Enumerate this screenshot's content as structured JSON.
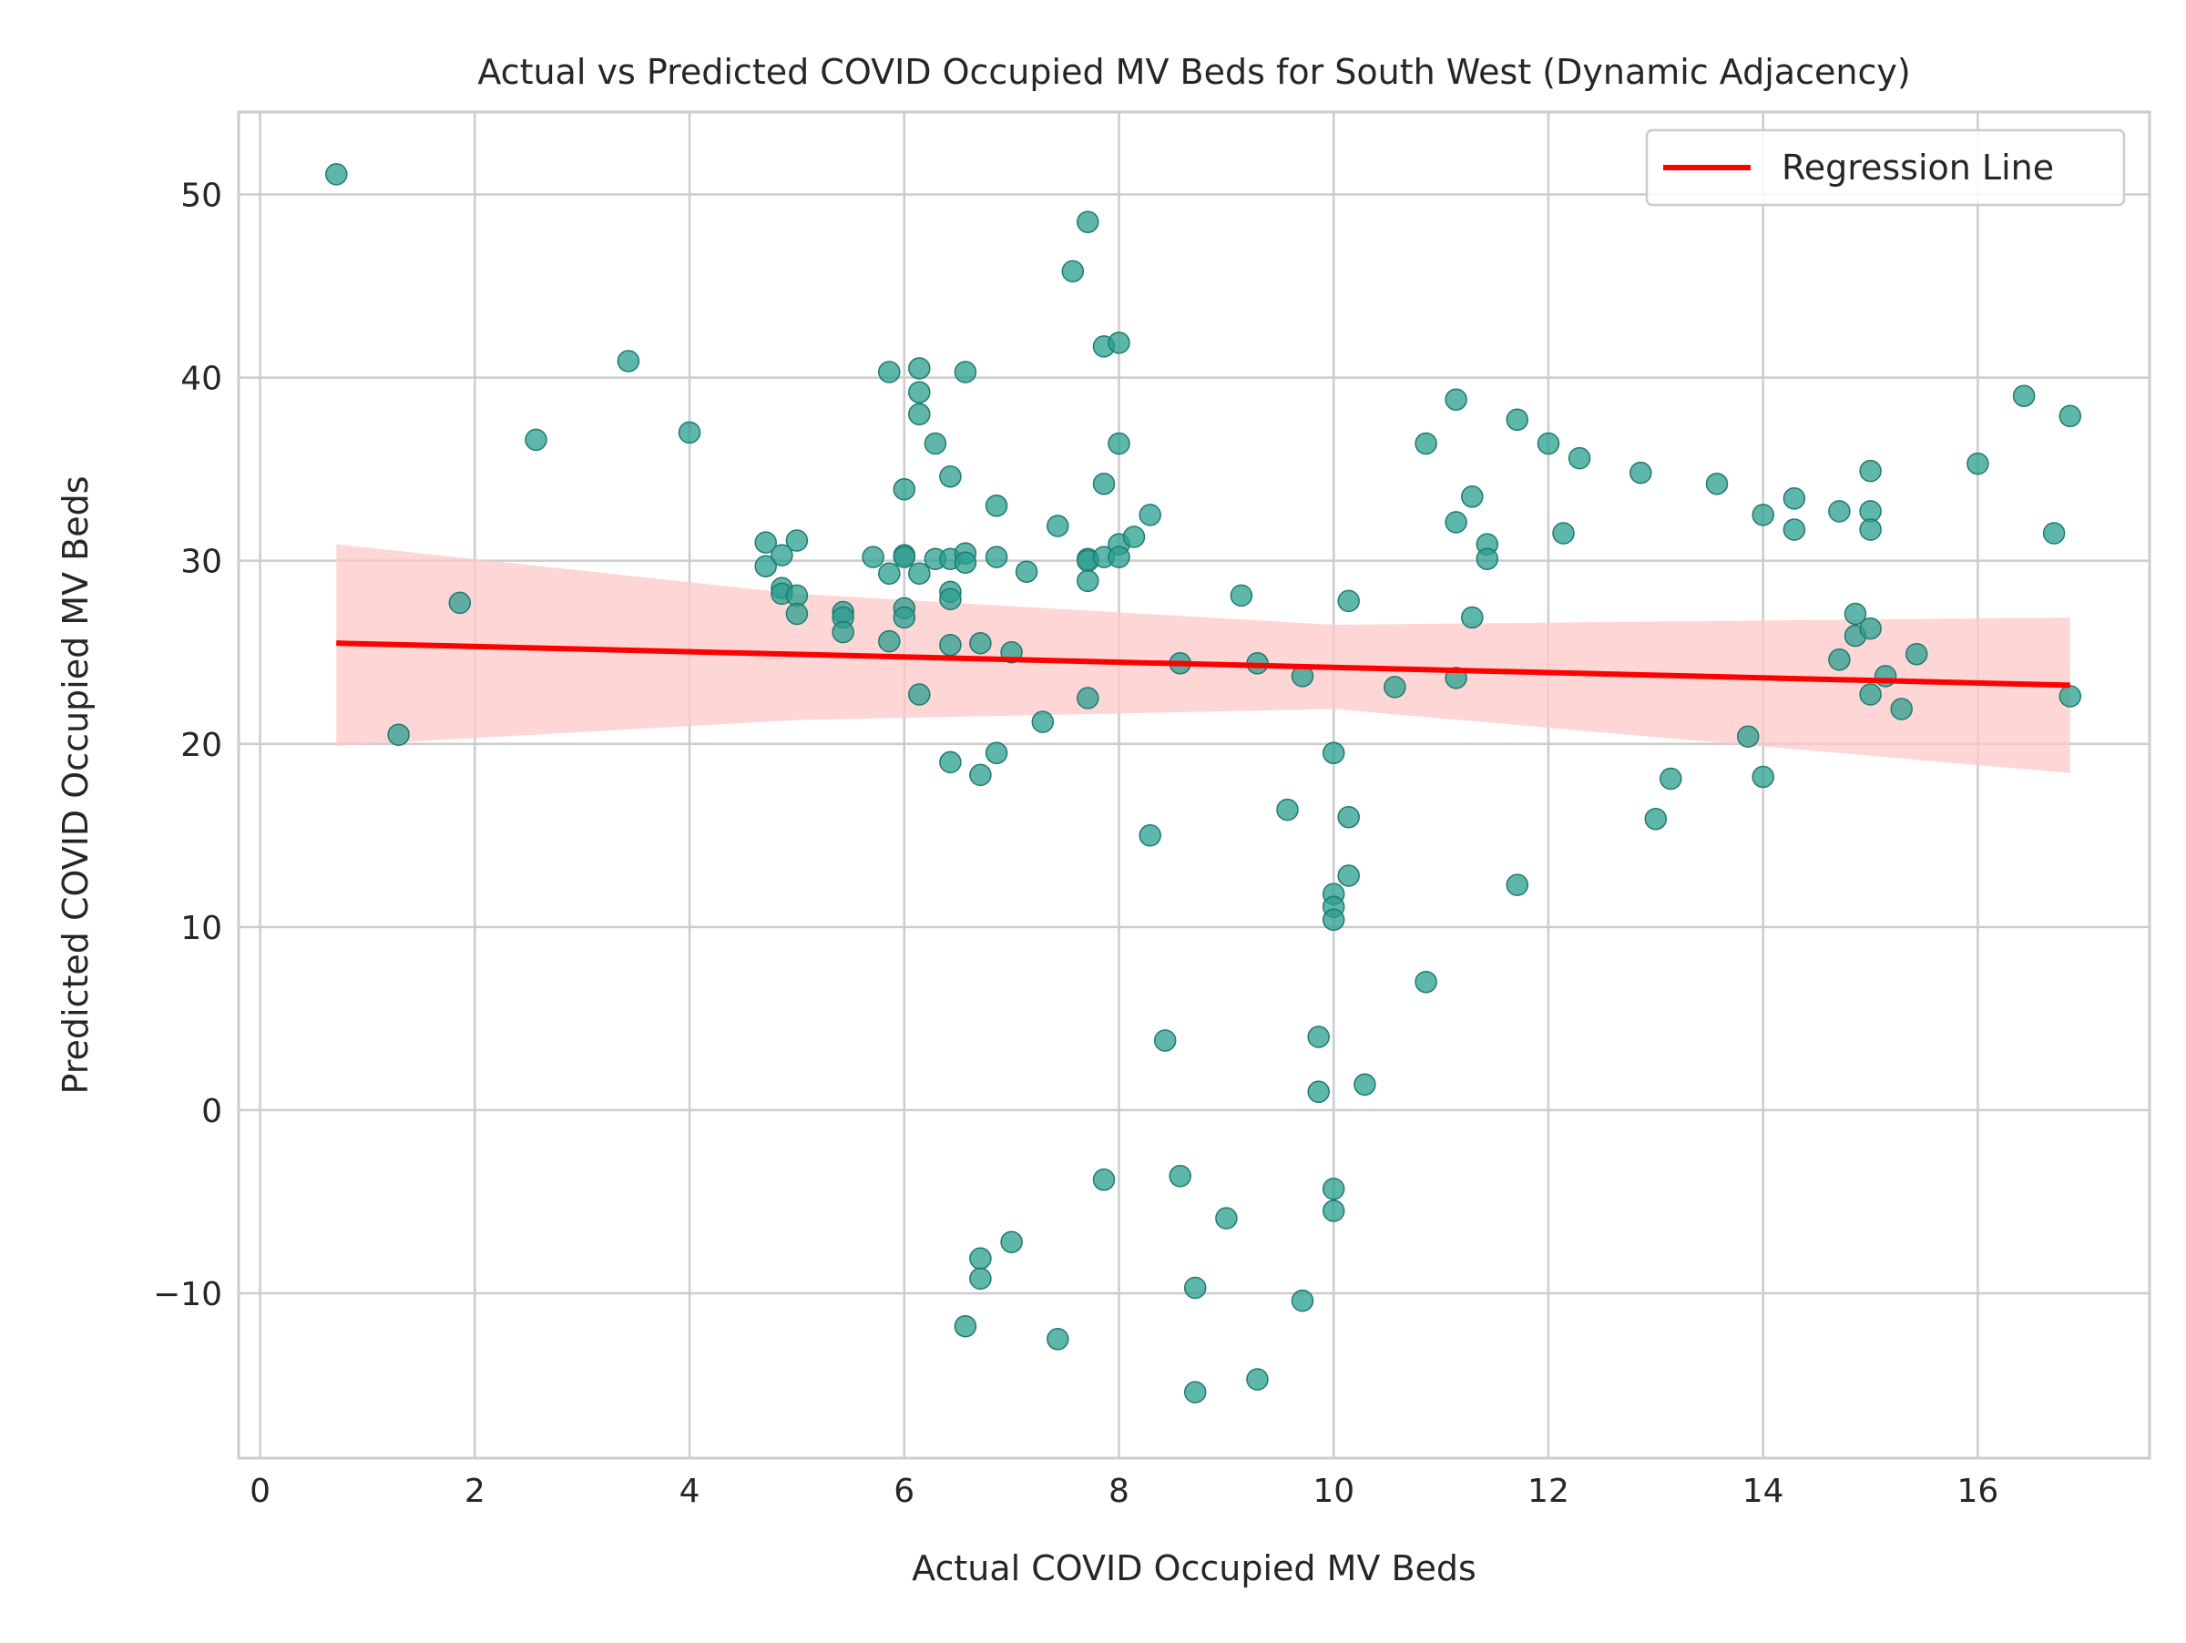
{
  "chart_data": {
    "type": "scatter",
    "title": "Actual vs Predicted COVID Occupied MV Beds for South West (Dynamic Adjacency)",
    "xlabel": "Actual COVID Occupied MV Beds",
    "ylabel": "Predicted COVID Occupied MV Beds",
    "xlim": [
      -0.2,
      17.6
    ],
    "ylim": [
      -19,
      54.5
    ],
    "xticks": [
      0,
      2,
      4,
      6,
      8,
      10,
      12,
      14,
      16
    ],
    "yticks": [
      -10,
      0,
      10,
      20,
      30,
      40,
      50
    ],
    "ytick_labels": [
      "−10",
      "0",
      "10",
      "20",
      "30",
      "40",
      "50"
    ],
    "grid": true,
    "legend": {
      "position": "top-right",
      "entries": [
        "Regression Line"
      ]
    },
    "colors": {
      "points": "#2a9d8f",
      "point_edge": "#1f7a6f",
      "regression": "#ff0000",
      "band": "#ffc8c8"
    },
    "regression": {
      "x": [
        0.71,
        16.86
      ],
      "y": [
        25.5,
        23.2
      ]
    },
    "confidence_band": {
      "x": [
        0.71,
        5.0,
        10.0,
        16.86
      ],
      "upper": [
        30.9,
        28.2,
        26.5,
        26.9
      ],
      "lower": [
        19.9,
        21.3,
        21.9,
        18.4
      ]
    },
    "points": [
      {
        "x": 0.71,
        "y": 51.1
      },
      {
        "x": 1.29,
        "y": 20.5
      },
      {
        "x": 1.86,
        "y": 27.7
      },
      {
        "x": 2.57,
        "y": 36.6
      },
      {
        "x": 3.43,
        "y": 40.9
      },
      {
        "x": 4.0,
        "y": 37.0
      },
      {
        "x": 4.71,
        "y": 31.0
      },
      {
        "x": 4.71,
        "y": 29.7
      },
      {
        "x": 4.86,
        "y": 30.3
      },
      {
        "x": 4.86,
        "y": 28.5
      },
      {
        "x": 4.86,
        "y": 28.2
      },
      {
        "x": 5.0,
        "y": 31.1
      },
      {
        "x": 5.0,
        "y": 28.1
      },
      {
        "x": 5.0,
        "y": 27.1
      },
      {
        "x": 5.43,
        "y": 27.2
      },
      {
        "x": 5.43,
        "y": 26.9
      },
      {
        "x": 5.43,
        "y": 26.1
      },
      {
        "x": 5.71,
        "y": 30.2
      },
      {
        "x": 5.86,
        "y": 40.3
      },
      {
        "x": 5.86,
        "y": 29.3
      },
      {
        "x": 5.86,
        "y": 25.6
      },
      {
        "x": 6.0,
        "y": 33.9
      },
      {
        "x": 6.0,
        "y": 30.3
      },
      {
        "x": 6.0,
        "y": 30.2
      },
      {
        "x": 6.0,
        "y": 27.4
      },
      {
        "x": 6.0,
        "y": 26.9
      },
      {
        "x": 6.14,
        "y": 40.5
      },
      {
        "x": 6.14,
        "y": 39.2
      },
      {
        "x": 6.14,
        "y": 38.0
      },
      {
        "x": 6.14,
        "y": 29.3
      },
      {
        "x": 6.14,
        "y": 22.7
      },
      {
        "x": 6.29,
        "y": 36.4
      },
      {
        "x": 6.29,
        "y": 30.1
      },
      {
        "x": 6.43,
        "y": 34.6
      },
      {
        "x": 6.43,
        "y": 30.1
      },
      {
        "x": 6.43,
        "y": 28.3
      },
      {
        "x": 6.43,
        "y": 27.9
      },
      {
        "x": 6.43,
        "y": 25.4
      },
      {
        "x": 6.43,
        "y": 19.0
      },
      {
        "x": 6.57,
        "y": 40.3
      },
      {
        "x": 6.57,
        "y": 30.4
      },
      {
        "x": 6.57,
        "y": 29.9
      },
      {
        "x": 6.57,
        "y": -11.8
      },
      {
        "x": 6.71,
        "y": 25.5
      },
      {
        "x": 6.71,
        "y": 18.3
      },
      {
        "x": 6.71,
        "y": -8.1
      },
      {
        "x": 6.71,
        "y": -9.2
      },
      {
        "x": 6.86,
        "y": 33.0
      },
      {
        "x": 6.86,
        "y": 30.2
      },
      {
        "x": 6.86,
        "y": 19.5
      },
      {
        "x": 7.0,
        "y": 25.0
      },
      {
        "x": 7.0,
        "y": -7.2
      },
      {
        "x": 7.14,
        "y": 29.4
      },
      {
        "x": 7.29,
        "y": 21.2
      },
      {
        "x": 7.43,
        "y": 31.9
      },
      {
        "x": 7.43,
        "y": -12.5
      },
      {
        "x": 7.57,
        "y": 45.8
      },
      {
        "x": 7.71,
        "y": 48.5
      },
      {
        "x": 7.71,
        "y": 30.1
      },
      {
        "x": 7.71,
        "y": 30.0
      },
      {
        "x": 7.71,
        "y": 28.9
      },
      {
        "x": 7.71,
        "y": 22.5
      },
      {
        "x": 7.86,
        "y": 41.7
      },
      {
        "x": 7.86,
        "y": 34.2
      },
      {
        "x": 7.86,
        "y": 30.2
      },
      {
        "x": 7.86,
        "y": -3.8
      },
      {
        "x": 8.0,
        "y": 41.9
      },
      {
        "x": 8.0,
        "y": 36.4
      },
      {
        "x": 8.0,
        "y": 30.9
      },
      {
        "x": 8.0,
        "y": 30.2
      },
      {
        "x": 8.14,
        "y": 31.3
      },
      {
        "x": 8.29,
        "y": 32.5
      },
      {
        "x": 8.29,
        "y": 15.0
      },
      {
        "x": 8.43,
        "y": 3.8
      },
      {
        "x": 8.57,
        "y": 24.4
      },
      {
        "x": 8.57,
        "y": -3.6
      },
      {
        "x": 8.71,
        "y": -9.7
      },
      {
        "x": 8.71,
        "y": -15.4
      },
      {
        "x": 9.0,
        "y": -5.9
      },
      {
        "x": 9.14,
        "y": 28.1
      },
      {
        "x": 9.29,
        "y": 24.4
      },
      {
        "x": 9.29,
        "y": -14.7
      },
      {
        "x": 9.57,
        "y": 16.4
      },
      {
        "x": 9.71,
        "y": 23.7
      },
      {
        "x": 9.71,
        "y": -10.4
      },
      {
        "x": 9.86,
        "y": 4.0
      },
      {
        "x": 9.86,
        "y": 1.0
      },
      {
        "x": 10.0,
        "y": 19.5
      },
      {
        "x": 10.0,
        "y": 11.8
      },
      {
        "x": 10.0,
        "y": 11.1
      },
      {
        "x": 10.0,
        "y": 10.4
      },
      {
        "x": 10.0,
        "y": -4.3
      },
      {
        "x": 10.0,
        "y": -5.5
      },
      {
        "x": 10.14,
        "y": 27.8
      },
      {
        "x": 10.14,
        "y": 16.0
      },
      {
        "x": 10.14,
        "y": 12.8
      },
      {
        "x": 10.29,
        "y": 1.4
      },
      {
        "x": 10.57,
        "y": 23.1
      },
      {
        "x": 10.86,
        "y": 36.4
      },
      {
        "x": 10.86,
        "y": 7.0
      },
      {
        "x": 11.14,
        "y": 38.8
      },
      {
        "x": 11.14,
        "y": 32.1
      },
      {
        "x": 11.14,
        "y": 23.6
      },
      {
        "x": 11.29,
        "y": 33.5
      },
      {
        "x": 11.29,
        "y": 26.9
      },
      {
        "x": 11.43,
        "y": 30.9
      },
      {
        "x": 11.43,
        "y": 30.1
      },
      {
        "x": 11.71,
        "y": 37.7
      },
      {
        "x": 11.71,
        "y": 12.3
      },
      {
        "x": 12.0,
        "y": 36.4
      },
      {
        "x": 12.14,
        "y": 31.5
      },
      {
        "x": 12.29,
        "y": 35.6
      },
      {
        "x": 12.86,
        "y": 34.8
      },
      {
        "x": 13.0,
        "y": 15.9
      },
      {
        "x": 13.14,
        "y": 18.1
      },
      {
        "x": 13.57,
        "y": 34.2
      },
      {
        "x": 13.86,
        "y": 20.4
      },
      {
        "x": 14.0,
        "y": 32.5
      },
      {
        "x": 14.0,
        "y": 18.2
      },
      {
        "x": 14.29,
        "y": 33.4
      },
      {
        "x": 14.29,
        "y": 31.7
      },
      {
        "x": 14.71,
        "y": 32.7
      },
      {
        "x": 14.71,
        "y": 24.6
      },
      {
        "x": 14.86,
        "y": 27.1
      },
      {
        "x": 14.86,
        "y": 25.9
      },
      {
        "x": 15.0,
        "y": 34.9
      },
      {
        "x": 15.0,
        "y": 32.7
      },
      {
        "x": 15.0,
        "y": 31.7
      },
      {
        "x": 15.0,
        "y": 26.3
      },
      {
        "x": 15.0,
        "y": 22.7
      },
      {
        "x": 15.14,
        "y": 23.7
      },
      {
        "x": 15.29,
        "y": 21.9
      },
      {
        "x": 15.43,
        "y": 24.9
      },
      {
        "x": 16.0,
        "y": 35.3
      },
      {
        "x": 16.43,
        "y": 39.0
      },
      {
        "x": 16.71,
        "y": 31.5
      },
      {
        "x": 16.86,
        "y": 37.9
      },
      {
        "x": 16.86,
        "y": 22.6
      }
    ]
  }
}
